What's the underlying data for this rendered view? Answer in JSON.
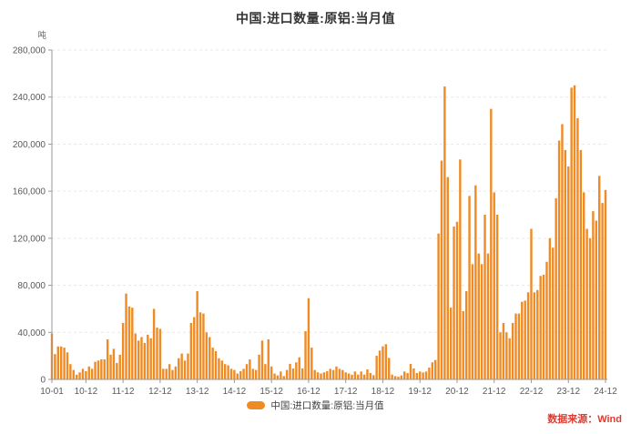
{
  "page": {
    "title": "中国:进口数量:原铝:当月值",
    "source_label": "数据来源：Wind"
  },
  "legend": {
    "label": "中国:进口数量:原铝:当月值"
  },
  "colors": {
    "bar": "#F08A23",
    "source_text": "#DE3B30",
    "axis": "#999999",
    "grid": "#E8E8E8",
    "tick_text": "#595959",
    "unit_text": "#666666"
  },
  "chart_data": {
    "type": "bar",
    "title": "中国:进口数量:原铝:当月值",
    "unit": "吨",
    "ylabel": "吨",
    "ylim": [
      0,
      280000
    ],
    "y_ticks": [
      0,
      40000,
      80000,
      120000,
      160000,
      200000,
      240000,
      280000
    ],
    "y_tick_labels": [
      "0",
      "40,000",
      "80,000",
      "120,000",
      "160,000",
      "200,000",
      "240,000",
      "280,000"
    ],
    "grid": "dashed-horizontal",
    "legend_position": "bottom-center",
    "start_month": "2010-01",
    "end_month": "2024-12",
    "x_tick_indices": [
      0,
      11,
      23,
      35,
      47,
      59,
      71,
      83,
      95,
      107,
      119,
      131,
      143,
      155,
      167,
      179
    ],
    "x_tick_labels": [
      "10-01",
      "10-12",
      "11-12",
      "12-12",
      "13-12",
      "14-12",
      "15-12",
      "16-12",
      "17-12",
      "18-12",
      "19-12",
      "20-12",
      "21-12",
      "22-12",
      "23-12",
      "24-12"
    ],
    "values": [
      39000,
      21500,
      28000,
      28000,
      27000,
      23000,
      13000,
      8000,
      4000,
      6000,
      9000,
      7000,
      11000,
      9000,
      15000,
      16000,
      17000,
      17000,
      34000,
      21000,
      26000,
      14000,
      21000,
      48000,
      73000,
      62000,
      61000,
      39000,
      33000,
      36000,
      31000,
      38000,
      35000,
      60000,
      44000,
      43000,
      9000,
      9000,
      13000,
      8000,
      11000,
      18000,
      22000,
      16000,
      22000,
      48000,
      53000,
      75000,
      57000,
      56000,
      40000,
      36000,
      27000,
      24000,
      18000,
      16000,
      13000,
      12000,
      9000,
      8000,
      5000,
      7000,
      9000,
      13000,
      17000,
      9000,
      8000,
      21000,
      33000,
      13000,
      34000,
      11000,
      5000,
      3400,
      6700,
      2800,
      8000,
      13200,
      9300,
      14500,
      18800,
      9300,
      41000,
      69000,
      27000,
      8000,
      6000,
      5000,
      6000,
      7000,
      9000,
      8000,
      11000,
      9000,
      8000,
      6000,
      5000,
      4000,
      6700,
      4100,
      6700,
      4100,
      8500,
      5400,
      3600,
      20100,
      24500,
      28100,
      29900,
      18300,
      4100,
      2800,
      2300,
      3400,
      6700,
      5400,
      13200,
      9300,
      5400,
      6700,
      5900,
      6700,
      10000,
      14500,
      16500,
      124000,
      186000,
      249000,
      172000,
      61000,
      130000,
      134000,
      187000,
      58000,
      75000,
      156000,
      98000,
      165000,
      107000,
      98000,
      140000,
      107000,
      230000,
      159000,
      140000,
      40000,
      48000,
      40000,
      35000,
      48000,
      56000,
      56000,
      66000,
      67000,
      74000,
      128000,
      74000,
      76000,
      88000,
      89000,
      100000,
      120000,
      112000,
      154000,
      203000,
      217000,
      195000,
      181000,
      248000,
      250000,
      222000,
      195000,
      159000,
      128000,
      120000,
      143000,
      135000,
      173000,
      150000,
      161000
    ]
  }
}
